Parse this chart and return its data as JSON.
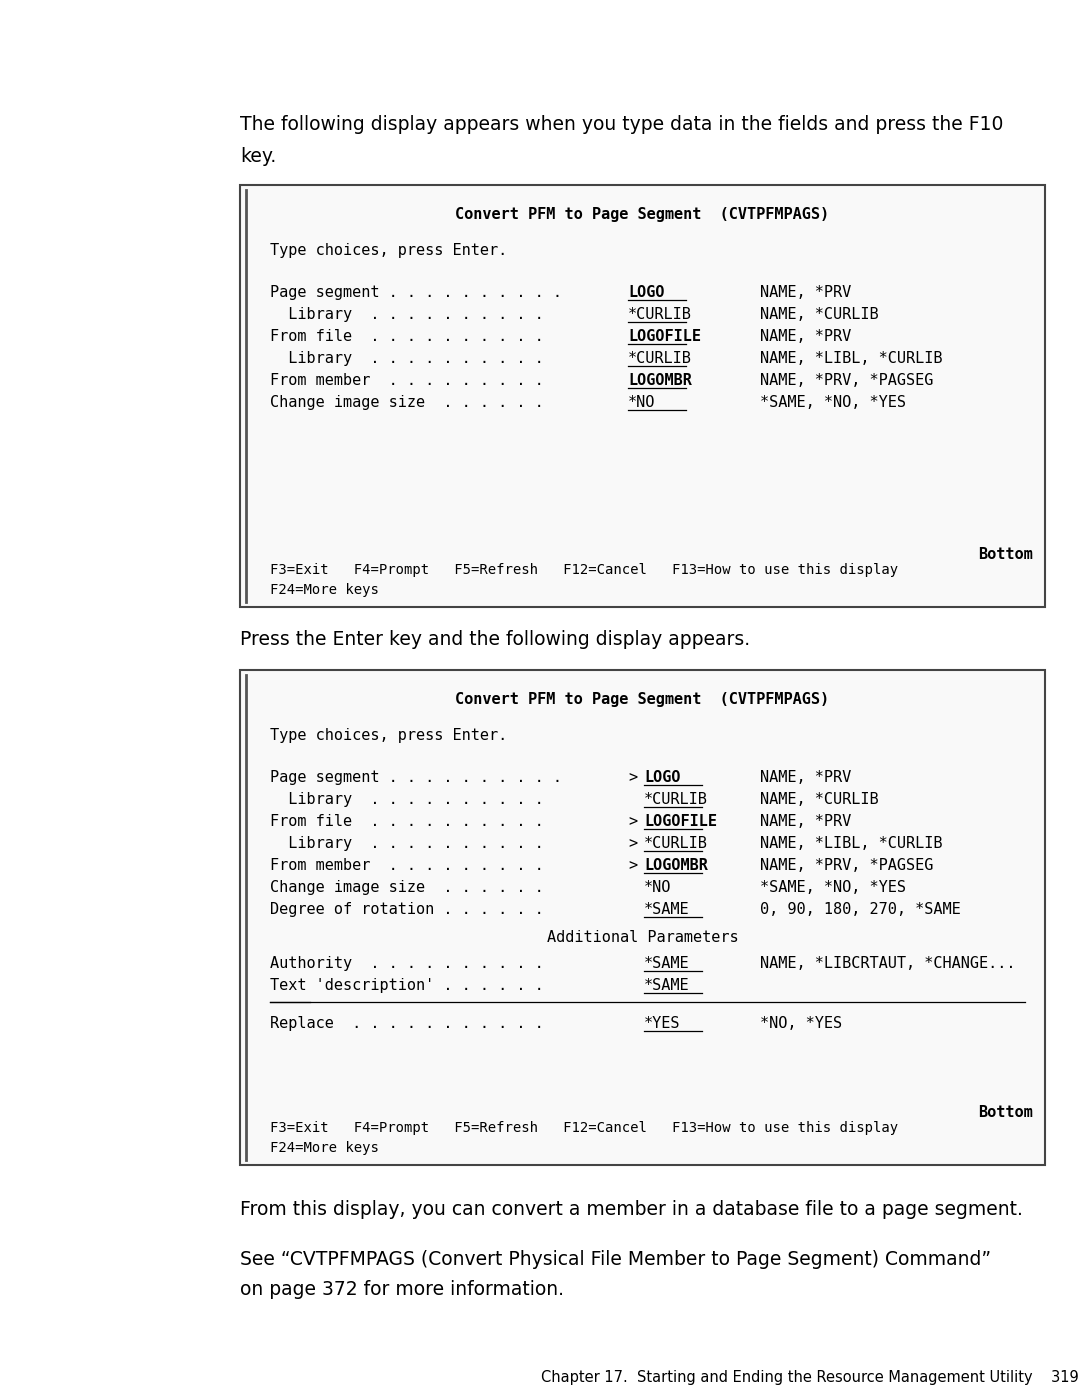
{
  "bg_color": "#ffffff",
  "text_color": "#000000",
  "page_width": 10.8,
  "page_height": 13.97,
  "top_paragraph_line1": "The following display appears when you type data in the fields and press the F10",
  "top_paragraph_line2": "key.",
  "middle_paragraph": "Press the Enter key and the following display appears.",
  "bottom_para1": "From this display, you can convert a member in a database file to a page segment.",
  "bottom_para2a": "See “CVTPFMPAGS (Convert Physical File Member to Page Segment) Command”",
  "bottom_para2b": "on page 372 for more information.",
  "footer": "Chapter 17.  Starting and Ending the Resource Management Utility    319",
  "box1_title": "Convert PFM to Page Segment  (CVTPFMPAGS)",
  "box1_subtitle": "Type choices, press Enter.",
  "box1_rows": [
    {
      "label": "Page segment . . . . . . . . . .",
      "value": "LOGO",
      "ul": true,
      "options": "NAME, *PRV",
      "indent": false
    },
    {
      "label": "Library  . . . . . . . . . .",
      "value": "*CURLIB",
      "ul": true,
      "options": "NAME, *CURLIB",
      "indent": true
    },
    {
      "label": "From file  . . . . . . . . . .",
      "value": "LOGOFILE",
      "ul": true,
      "options": "NAME, *PRV",
      "indent": false
    },
    {
      "label": "Library  . . . . . . . . . .",
      "value": "*CURLIB",
      "ul": true,
      "options": "NAME, *LIBL, *CURLIB",
      "indent": true
    },
    {
      "label": "From member  . . . . . . . . .",
      "value": "LOGOMBR",
      "ul": true,
      "options": "NAME, *PRV, *PAGSEG",
      "indent": false
    },
    {
      "label": "Change image size  . . . . . .",
      "value": "*NO",
      "ul": true,
      "options": "*SAME, *NO, *YES",
      "indent": false
    }
  ],
  "box1_fkeys": "F3=Exit   F4=Prompt   F5=Refresh   F12=Cancel   F13=How to use this display",
  "box1_fkeys2": "F24=More keys",
  "box1_bottom_right": "Bottom",
  "box2_title": "Convert PFM to Page Segment  (CVTPFMPAGS)",
  "box2_subtitle": "Type choices, press Enter.",
  "box2_rows": [
    {
      "label": "Page segment . . . . . . . . . .",
      "arrow": true,
      "value": "LOGO",
      "ul": true,
      "options": "NAME, *PRV",
      "indent": false
    },
    {
      "label": "Library  . . . . . . . . . .",
      "arrow": false,
      "value": "*CURLIB",
      "ul": true,
      "options": "NAME, *CURLIB",
      "indent": true
    },
    {
      "label": "From file  . . . . . . . . . .",
      "arrow": true,
      "value": "LOGOFILE",
      "ul": true,
      "options": "NAME, *PRV",
      "indent": false
    },
    {
      "label": "Library  . . . . . . . . . .",
      "arrow": true,
      "value": "*CURLIB",
      "ul": true,
      "options": "NAME, *LIBL, *CURLIB",
      "indent": true
    },
    {
      "label": "From member  . . . . . . . . .",
      "arrow": true,
      "value": "LOGOMBR",
      "ul": true,
      "options": "NAME, *PRV, *PAGSEG",
      "indent": false
    },
    {
      "label": "Change image size  . . . . . .",
      "arrow": false,
      "value": "*NO",
      "ul": false,
      "options": "*SAME, *NO, *YES",
      "indent": false
    },
    {
      "label": "Degree of rotation . . . . . .",
      "arrow": false,
      "value": "*SAME",
      "ul": true,
      "options": "0, 90, 180, 270, *SAME",
      "indent": false
    }
  ],
  "box2_addl": "Additional Parameters",
  "box2_extra": [
    {
      "label": "Authority  . . . . . . . . . .",
      "value": "*SAME",
      "ul": true,
      "options": "NAME, *LIBCRTAUT, *CHANGE..."
    },
    {
      "label": "Text 'description' . . . . . .",
      "value": "*SAME",
      "ul": true,
      "options": ""
    }
  ],
  "box2_replace": {
    "label": "Replace  . . . . . . . . . . .",
    "value": "*YES",
    "ul": true,
    "options": "*NO, *YES"
  },
  "box2_fkeys": "F3=Exit   F4=Prompt   F5=Refresh   F12=Cancel   F13=How to use this display",
  "box2_fkeys2": "F24=More keys",
  "box2_bottom_right": "Bottom"
}
